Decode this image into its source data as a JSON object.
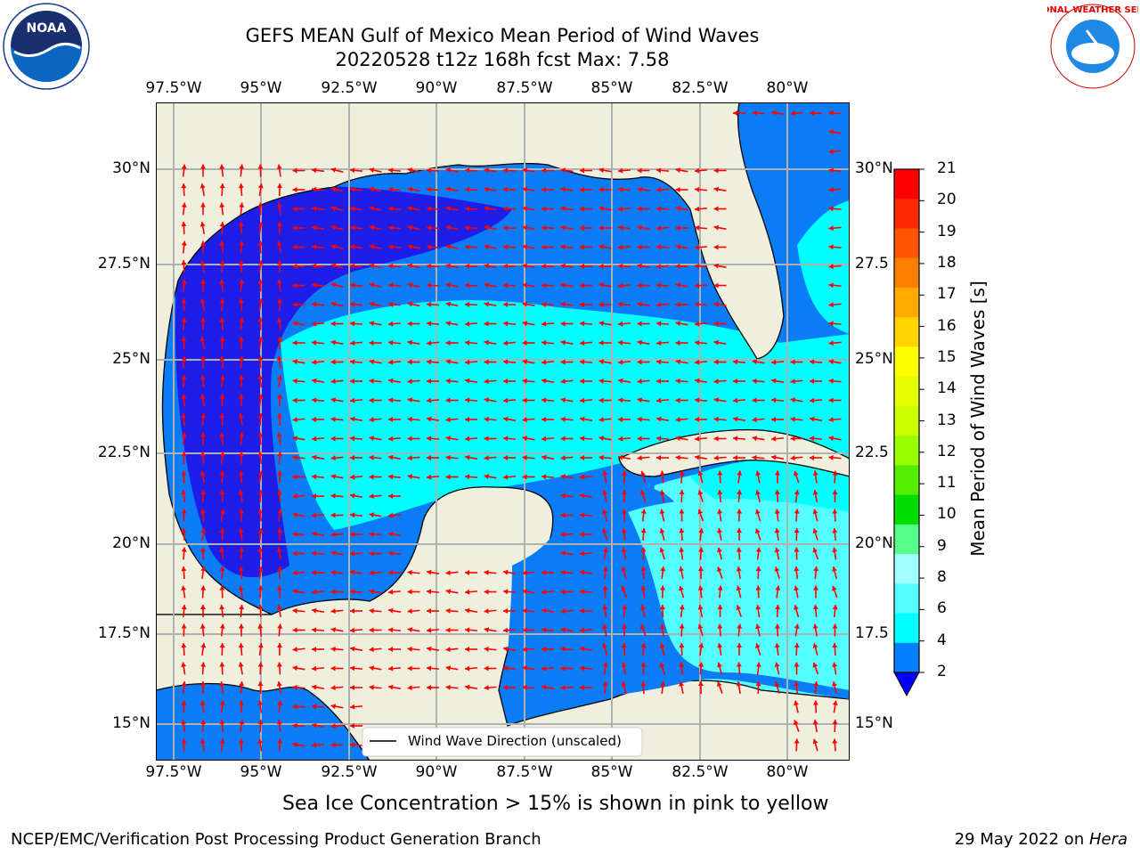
{
  "header": {
    "title_line1": "GEFS MEAN Gulf of Mexico Mean Period of Wind Waves",
    "title_line2": "20220528 t12z 168h fcst   Max: 7.58"
  },
  "logos": {
    "noaa": "NOAA",
    "nws": "NATIONAL WEATHER SERVICE"
  },
  "map": {
    "lon_ticks_top": [
      "97.5°W",
      "95°W",
      "92.5°W",
      "90°W",
      "87.5°W",
      "85°W",
      "82.5°W",
      "80°W"
    ],
    "lon_ticks_bottom": [
      "97.5°W",
      "95°W",
      "92.5°W",
      "90°W",
      "87.5°W",
      "85°W",
      "82.5°W",
      "80°W"
    ],
    "lat_ticks_left": [
      "30°N",
      "27.5°N",
      "25°N",
      "22.5°N",
      "20°N",
      "17.5°N",
      "15°N"
    ],
    "lat_ticks_right": [
      "30°N",
      "27.5",
      "25°N",
      "22.5",
      "20°N",
      "17.5",
      "15°N"
    ],
    "legend_label": "Wind Wave Direction (unscaled)",
    "colors": {
      "land": "#efefdd",
      "ocean_2_4": "#0a7cf6",
      "ocean_4_6": "#00ffff",
      "deep": "#1e1ee8",
      "arrow": "#ff0000",
      "grid": "#b0b0b0"
    }
  },
  "colorbar": {
    "label": "Mean Period of Wind Waves [s]",
    "ticks": [
      "21",
      "20",
      "19",
      "18",
      "17",
      "16",
      "15",
      "14",
      "13",
      "12",
      "11",
      "10",
      "9",
      "8",
      "6",
      "4",
      "2"
    ],
    "colors": [
      "#ff0000",
      "#ff2a00",
      "#ff5500",
      "#ff8000",
      "#ffaa00",
      "#ffd400",
      "#ffff00",
      "#e6ff00",
      "#ccff00",
      "#99ff00",
      "#55ee00",
      "#00dd00",
      "#55ff88",
      "#a0ffff",
      "#55ffff",
      "#00ffff",
      "#0080ff"
    ],
    "extend_color": "#0000ff"
  },
  "footer": {
    "note": "Sea Ice Concentration > 15% is shown in pink to yellow",
    "credit": "NCEP/EMC/Verification Post Processing Product Generation Branch",
    "date": "29 May 2022 on ",
    "host": "Hera"
  }
}
